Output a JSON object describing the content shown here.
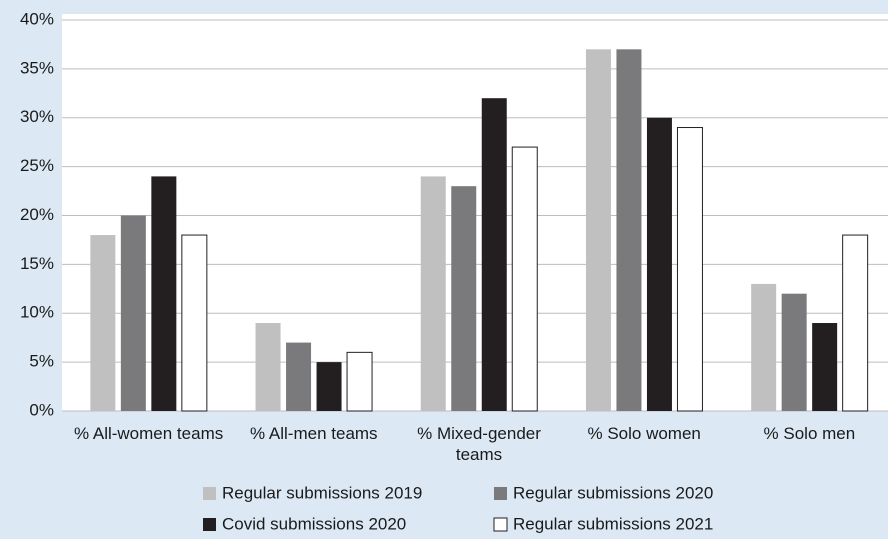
{
  "chart_data": {
    "type": "bar",
    "categories": [
      "% All-women teams",
      "% All-men teams",
      "% Mixed-gender teams",
      "% Solo women",
      "% Solo men"
    ],
    "series": [
      {
        "name": "Regular submissions 2019",
        "color": "#c0c0c0",
        "values": [
          18,
          9,
          24,
          37,
          13
        ]
      },
      {
        "name": "Regular submissions 2020",
        "color": "#7a7a7c",
        "values": [
          20,
          7,
          23,
          37,
          12
        ]
      },
      {
        "name": "Covid submissions 2020",
        "color": "#231f20",
        "values": [
          24,
          5,
          32,
          30,
          9
        ]
      },
      {
        "name": "Regular submissions 2021",
        "color": "#ffffff",
        "values": [
          18,
          6,
          27,
          29,
          18
        ]
      }
    ],
    "ylim": [
      0,
      40
    ],
    "yticks": [
      {
        "value": 0,
        "label": "0%"
      },
      {
        "value": 5,
        "label": "5%"
      },
      {
        "value": 10,
        "label": "10%"
      },
      {
        "value": 15,
        "label": "15%"
      },
      {
        "value": 20,
        "label": "20%"
      },
      {
        "value": 25,
        "label": "25%"
      },
      {
        "value": 30,
        "label": "30%"
      },
      {
        "value": 35,
        "label": "35%"
      },
      {
        "value": 40,
        "label": "40%"
      }
    ],
    "grid": true,
    "legend": "bottom"
  }
}
